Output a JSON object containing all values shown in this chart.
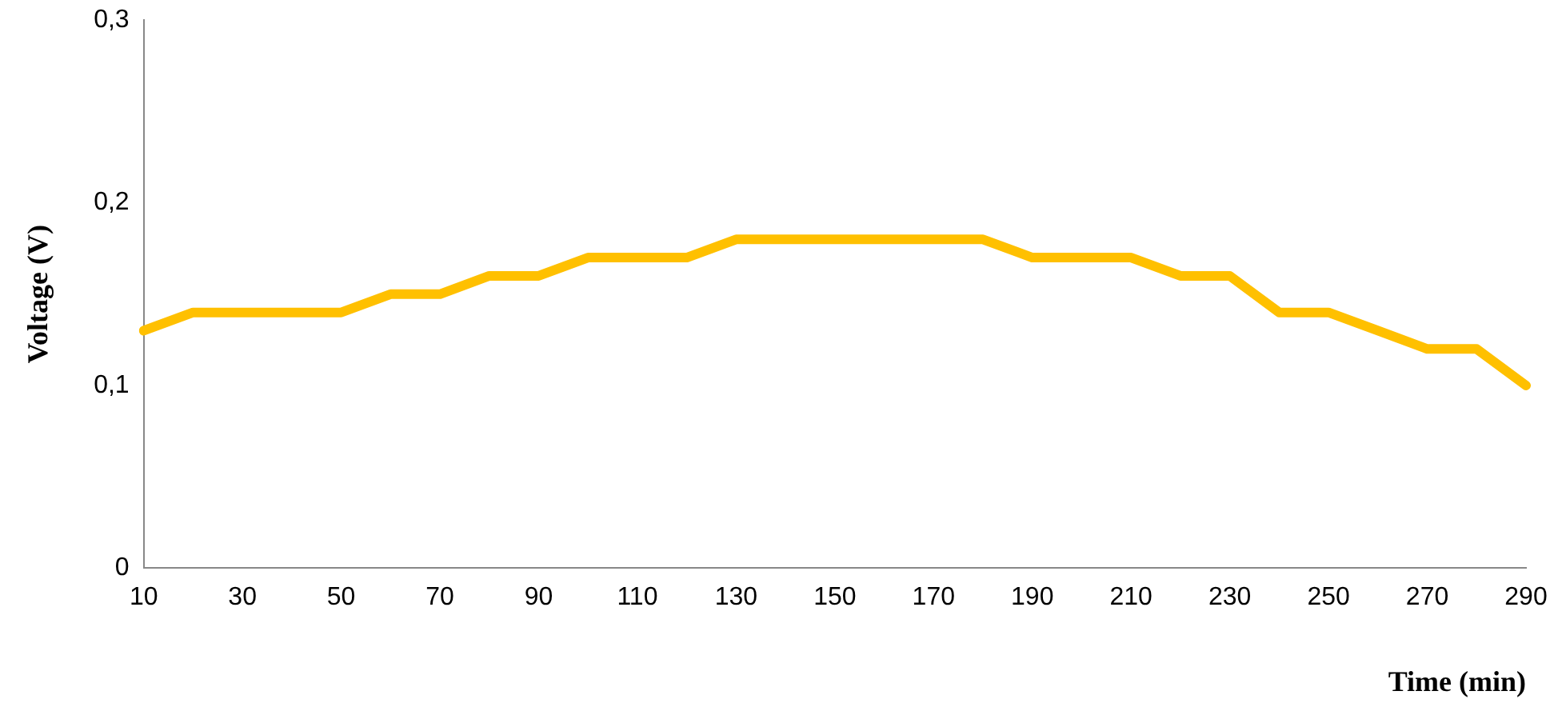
{
  "chart_data": {
    "type": "line",
    "xlabel": "Time (min)",
    "ylabel": "Voltage (V)",
    "categories": [
      "10",
      null,
      "30",
      null,
      "50",
      null,
      "70",
      null,
      "90",
      null,
      "110",
      null,
      "130",
      null,
      "150",
      null,
      "170",
      null,
      "190",
      null,
      "210",
      null,
      "230",
      null,
      "250",
      null,
      "270",
      null,
      "290"
    ],
    "values": [
      0.13,
      0.14,
      0.14,
      0.14,
      0.14,
      0.15,
      0.15,
      0.16,
      0.16,
      0.17,
      0.17,
      0.17,
      0.18,
      0.18,
      0.18,
      0.18,
      0.18,
      0.18,
      0.17,
      0.17,
      0.17,
      0.16,
      0.16,
      0.14,
      0.14,
      0.13,
      0.12,
      0.12,
      0.1
    ],
    "color": "#ffc000",
    "ylim": [
      0,
      0.3
    ],
    "yticks": [
      {
        "value": 0,
        "label": "0"
      },
      {
        "value": 0.1,
        "label": "0,1"
      },
      {
        "value": 0.2,
        "label": "0,2"
      },
      {
        "value": 0.3,
        "label": "0,3"
      }
    ],
    "grid": false,
    "legend": false,
    "marker": "none"
  }
}
